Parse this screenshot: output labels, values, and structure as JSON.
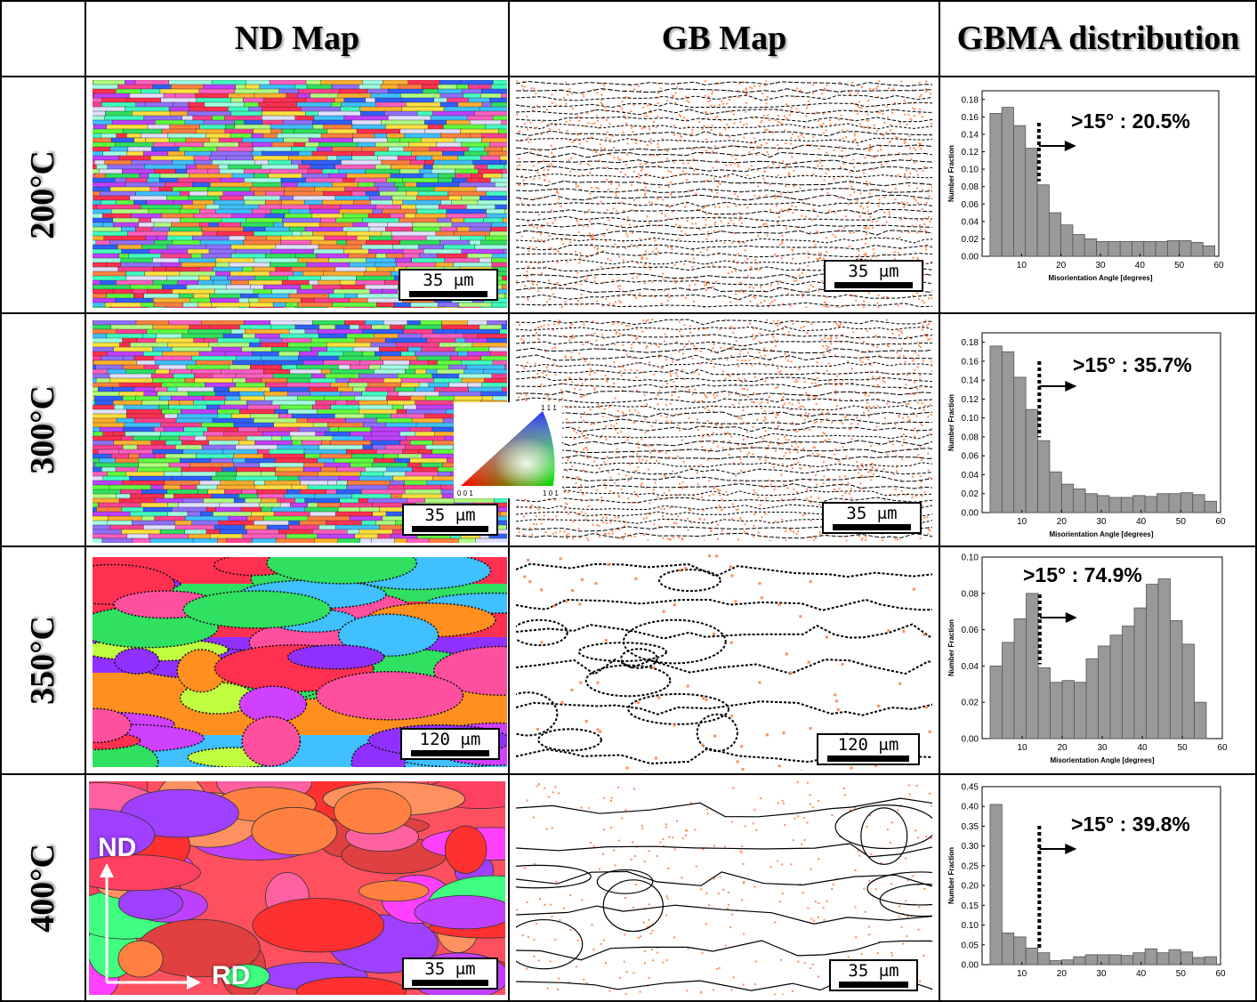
{
  "headers": {
    "blank": "",
    "nd_map": "ND Map",
    "gb_map": "GB Map",
    "gbma": "GBMA distribution"
  },
  "rows": [
    {
      "temp": "200°C",
      "nd_scale": "35 μm",
      "gb_scale": "35 μm",
      "annotation": ">15° : 20.5%",
      "nd_style": "fine",
      "gb_style": "fine"
    },
    {
      "temp": "300°C",
      "nd_scale": "35 μm",
      "gb_scale": "35 μm",
      "annotation": ">15° : 35.7%",
      "nd_style": "fine",
      "gb_style": "fine"
    },
    {
      "temp": "350°C",
      "nd_scale": "120 μm",
      "gb_scale": "120 μm",
      "annotation": ">15° : 74.9%",
      "nd_style": "coarse",
      "gb_style": "coarse"
    },
    {
      "temp": "400°C",
      "nd_scale": "35 μm",
      "gb_scale": "35 μm",
      "annotation": ">15° : 39.8%",
      "nd_style": "coarse-red",
      "gb_style": "sparse"
    }
  ],
  "ipf_legend": {
    "top": "1 1 1",
    "left": "0 0 1",
    "right": "1 0 1"
  },
  "axes_labels": {
    "nd": "ND",
    "rd": "RD"
  },
  "colors": {
    "bar_fill": "#999999",
    "bar_stroke": "#555555",
    "boundary": "#000000",
    "low_angle": "#ff8c5a"
  },
  "chart_data": [
    {
      "type": "bar",
      "title": "",
      "xlabel": "Misorientation Angle [degrees]",
      "ylabel": "Number Fraction",
      "xlim": [
        0,
        60
      ],
      "ylim": [
        0,
        0.19
      ],
      "xticks": [
        10,
        20,
        30,
        40,
        50,
        60
      ],
      "yticks": [
        0.0,
        0.02,
        0.04,
        0.06,
        0.08,
        0.1,
        0.12,
        0.14,
        0.16,
        0.18
      ],
      "x": [
        3.5,
        6.5,
        9.5,
        12.5,
        15.5,
        18.5,
        21.5,
        24.5,
        27.5,
        30.5,
        33.5,
        36.5,
        39.5,
        42.5,
        45.5,
        48.5,
        51.5,
        54.5,
        57.5
      ],
      "values": [
        0.164,
        0.171,
        0.15,
        0.124,
        0.082,
        0.05,
        0.036,
        0.025,
        0.02,
        0.017,
        0.017,
        0.017,
        0.017,
        0.017,
        0.017,
        0.018,
        0.018,
        0.016,
        0.012
      ],
      "threshold": 15
    },
    {
      "type": "bar",
      "title": "",
      "xlabel": "Misorientation Angle [degrees]",
      "ylabel": "Number Fraction",
      "xlim": [
        0,
        60
      ],
      "ylim": [
        0,
        0.19
      ],
      "xticks": [
        10,
        20,
        30,
        40,
        50,
        60
      ],
      "yticks": [
        0.0,
        0.02,
        0.04,
        0.06,
        0.08,
        0.1,
        0.12,
        0.14,
        0.16,
        0.18
      ],
      "x": [
        3.5,
        6.5,
        9.5,
        12.5,
        15.5,
        18.5,
        21.5,
        24.5,
        27.5,
        30.5,
        33.5,
        36.5,
        39.5,
        42.5,
        45.5,
        48.5,
        51.5,
        54.5,
        57.5
      ],
      "values": [
        0.176,
        0.17,
        0.143,
        0.109,
        0.076,
        0.043,
        0.03,
        0.025,
        0.02,
        0.018,
        0.016,
        0.016,
        0.018,
        0.017,
        0.02,
        0.02,
        0.021,
        0.019,
        0.012
      ],
      "threshold": 15
    },
    {
      "type": "bar",
      "title": "",
      "xlabel": "Misorientation Angle [degrees]",
      "ylabel": "Number Fraction",
      "xlim": [
        0,
        60
      ],
      "ylim": [
        0,
        0.1
      ],
      "xticks": [
        10,
        20,
        30,
        40,
        50,
        60
      ],
      "yticks": [
        0.0,
        0.02,
        0.04,
        0.06,
        0.08,
        0.1
      ],
      "x": [
        3.5,
        6.5,
        9.5,
        12.5,
        15.5,
        18.5,
        21.5,
        24.5,
        27.5,
        30.5,
        33.5,
        36.5,
        39.5,
        42.5,
        45.5,
        48.5,
        51.5,
        54.5
      ],
      "values": [
        0.04,
        0.053,
        0.066,
        0.08,
        0.039,
        0.031,
        0.032,
        0.031,
        0.044,
        0.051,
        0.057,
        0.062,
        0.072,
        0.085,
        0.088,
        0.065,
        0.052,
        0.02
      ],
      "threshold": 15
    },
    {
      "type": "bar",
      "title": "",
      "xlabel": "",
      "ylabel": "Number Fraction",
      "xlim": [
        0,
        60
      ],
      "ylim": [
        0,
        0.45
      ],
      "xticks": [
        10,
        20,
        30,
        40,
        50,
        60
      ],
      "yticks": [
        0.0,
        0.05,
        0.1,
        0.15,
        0.2,
        0.25,
        0.3,
        0.35,
        0.4,
        0.45
      ],
      "x": [
        3.5,
        6.5,
        9.5,
        12.5,
        15.5,
        18.5,
        21.5,
        24.5,
        27.5,
        30.5,
        33.5,
        36.5,
        39.5,
        42.5,
        45.5,
        48.5,
        51.5,
        54.5,
        57.5
      ],
      "values": [
        0.405,
        0.08,
        0.07,
        0.042,
        0.03,
        0.01,
        0.012,
        0.02,
        0.025,
        0.025,
        0.025,
        0.023,
        0.03,
        0.04,
        0.03,
        0.038,
        0.032,
        0.018,
        0.02
      ],
      "threshold": 15
    }
  ]
}
